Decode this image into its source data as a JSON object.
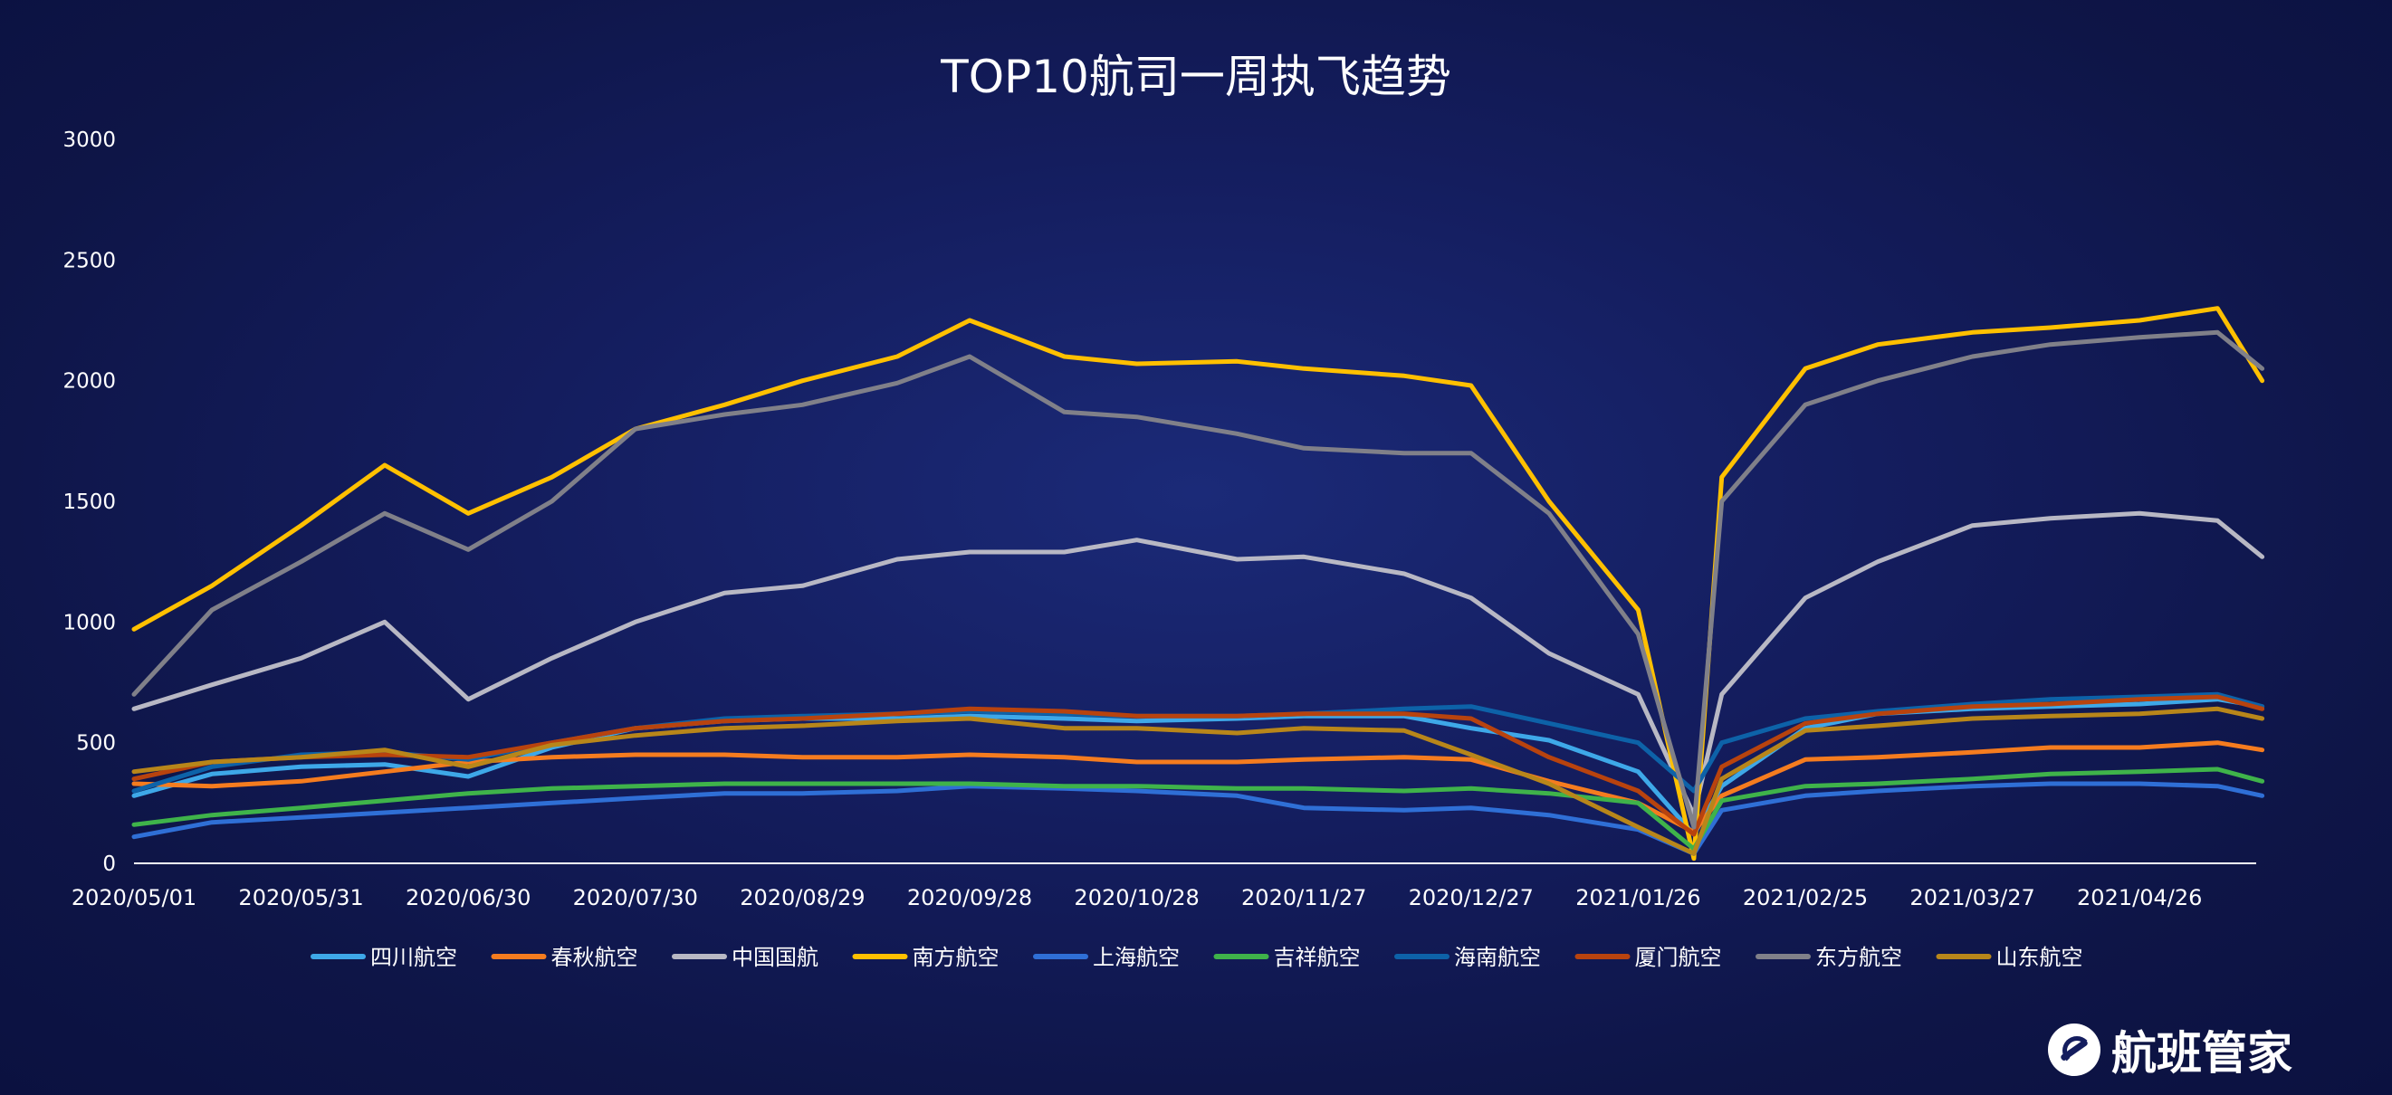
{
  "chart_data": {
    "type": "line",
    "title": "TOP10航司一周执飞趋势",
    "xlabel": "",
    "ylabel": "",
    "ylim": [
      0,
      3000
    ],
    "y_ticks": [
      "0",
      "500",
      "1000",
      "1500",
      "2000",
      "2500",
      "3000"
    ],
    "x_ticks": [
      "2020/05/01",
      "2020/05/31",
      "2020/06/30",
      "2020/07/30",
      "2020/08/29",
      "2020/09/28",
      "2020/10/28",
      "2020/11/27",
      "2020/12/27",
      "2021/01/26",
      "2021/02/25",
      "2021/03/27",
      "2021/04/26"
    ],
    "x": [
      "2020/05/01",
      "2020/05/15",
      "2020/05/31",
      "2020/06/15",
      "2020/06/30",
      "2020/07/15",
      "2020/07/30",
      "2020/08/15",
      "2020/08/29",
      "2020/09/15",
      "2020/09/28",
      "2020/10/15",
      "2020/10/28",
      "2020/11/15",
      "2020/11/27",
      "2020/12/15",
      "2020/12/27",
      "2021/01/10",
      "2021/01/26",
      "2021/02/05",
      "2021/02/10",
      "2021/02/25",
      "2021/03/10",
      "2021/03/27",
      "2021/04/10",
      "2021/04/26",
      "2021/05/10",
      "2021/05/18"
    ],
    "legend_position": "bottom",
    "grid": false,
    "series": [
      {
        "name": "四川航空",
        "color": "#3ea8e8",
        "values": [
          280,
          370,
          400,
          410,
          360,
          480,
          560,
          590,
          600,
          600,
          610,
          600,
          590,
          600,
          610,
          610,
          560,
          510,
          380,
          120,
          320,
          560,
          620,
          640,
          650,
          660,
          680,
          650
        ]
      },
      {
        "name": "春秋航空",
        "color": "#f57c1f",
        "values": [
          330,
          320,
          340,
          380,
          420,
          440,
          450,
          450,
          440,
          440,
          450,
          440,
          420,
          420,
          430,
          440,
          430,
          340,
          250,
          130,
          280,
          430,
          440,
          460,
          480,
          480,
          500,
          470
        ]
      },
      {
        "name": "中国国航",
        "color": "#b8b8c4",
        "values": [
          640,
          740,
          850,
          1000,
          680,
          850,
          1000,
          1120,
          1150,
          1260,
          1290,
          1290,
          1340,
          1260,
          1270,
          1200,
          1100,
          870,
          700,
          200,
          700,
          1100,
          1250,
          1400,
          1430,
          1450,
          1420,
          1270
        ]
      },
      {
        "name": "南方航空",
        "color": "#ffc000",
        "values": [
          970,
          1150,
          1400,
          1650,
          1450,
          1600,
          1800,
          1900,
          2000,
          2100,
          2250,
          2100,
          2070,
          2080,
          2050,
          2020,
          1980,
          1500,
          1050,
          20,
          1600,
          2050,
          2150,
          2200,
          2220,
          2250,
          2300,
          2000
        ]
      },
      {
        "name": "上海航空",
        "color": "#2f6fd6",
        "values": [
          110,
          170,
          190,
          210,
          230,
          250,
          270,
          290,
          290,
          300,
          320,
          310,
          300,
          280,
          230,
          220,
          230,
          200,
          140,
          40,
          220,
          280,
          300,
          320,
          330,
          330,
          320,
          280
        ]
      },
      {
        "name": "吉祥航空",
        "color": "#3fb34a",
        "values": [
          160,
          200,
          230,
          260,
          290,
          310,
          320,
          330,
          330,
          330,
          330,
          320,
          320,
          310,
          310,
          300,
          310,
          290,
          250,
          60,
          260,
          320,
          330,
          350,
          370,
          380,
          390,
          340
        ]
      },
      {
        "name": "海南航空",
        "color": "#0d62a8",
        "values": [
          300,
          400,
          450,
          460,
          430,
          500,
          560,
          600,
          610,
          620,
          630,
          620,
          610,
          610,
          620,
          640,
          650,
          580,
          500,
          300,
          500,
          600,
          630,
          660,
          680,
          690,
          700,
          650
        ]
      },
      {
        "name": "厦门航空",
        "color": "#b8430e",
        "values": [
          350,
          420,
          440,
          450,
          440,
          500,
          560,
          590,
          600,
          620,
          640,
          630,
          610,
          610,
          620,
          620,
          600,
          440,
          300,
          120,
          400,
          580,
          620,
          650,
          660,
          680,
          690,
          640
        ]
      },
      {
        "name": "东方航空",
        "color": "#808089",
        "values": [
          700,
          1050,
          1250,
          1450,
          1300,
          1500,
          1800,
          1860,
          1900,
          1990,
          2100,
          1870,
          1850,
          1780,
          1720,
          1700,
          1700,
          1450,
          950,
          150,
          1500,
          1900,
          2000,
          2100,
          2150,
          2180,
          2200,
          2050
        ]
      },
      {
        "name": "山东航空",
        "color": "#b8861a",
        "values": [
          380,
          420,
          440,
          470,
          400,
          490,
          530,
          560,
          570,
          590,
          600,
          560,
          560,
          540,
          560,
          550,
          450,
          330,
          150,
          40,
          350,
          550,
          570,
          600,
          610,
          620,
          640,
          600
        ]
      }
    ]
  }
}
